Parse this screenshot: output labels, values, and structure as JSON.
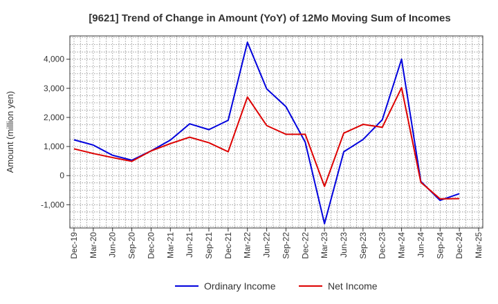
{
  "chart_data": {
    "type": "line",
    "title": "[9621]  Trend of Change in Amount (YoY) of 12Mo Moving Sum of Incomes",
    "xlabel": "",
    "ylabel": "Amount (million yen)",
    "categories": [
      "Dec-19",
      "Mar-20",
      "Jun-20",
      "Sep-20",
      "Dec-20",
      "Mar-21",
      "Jun-21",
      "Sep-21",
      "Dec-21",
      "Mar-22",
      "Jun-22",
      "Sep-22",
      "Dec-22",
      "Mar-23",
      "Jun-23",
      "Sep-23",
      "Dec-23",
      "Mar-24",
      "Jun-24",
      "Sep-24",
      "Dec-24",
      "Mar-25"
    ],
    "ylim": [
      -1800,
      4800
    ],
    "yticks": [
      -1000,
      0,
      1000,
      2000,
      3000,
      4000
    ],
    "ytick_labels": [
      "-1,000",
      "0",
      "1,000",
      "2,000",
      "3,000",
      "4,000"
    ],
    "grid": true,
    "legend_position": "bottom-center",
    "series": [
      {
        "name": "Ordinary Income",
        "color": "#0000dd",
        "values": [
          1230,
          1050,
          700,
          530,
          850,
          1220,
          1780,
          1580,
          1900,
          4580,
          2980,
          2370,
          1150,
          -1650,
          820,
          1240,
          1920,
          4000,
          -200,
          -850,
          -620,
          null
        ]
      },
      {
        "name": "Net Income",
        "color": "#dd0000",
        "values": [
          920,
          760,
          620,
          490,
          850,
          1100,
          1320,
          1130,
          820,
          2700,
          1720,
          1420,
          1420,
          -370,
          1460,
          1760,
          1660,
          3020,
          -230,
          -800,
          -790,
          null
        ]
      }
    ]
  }
}
